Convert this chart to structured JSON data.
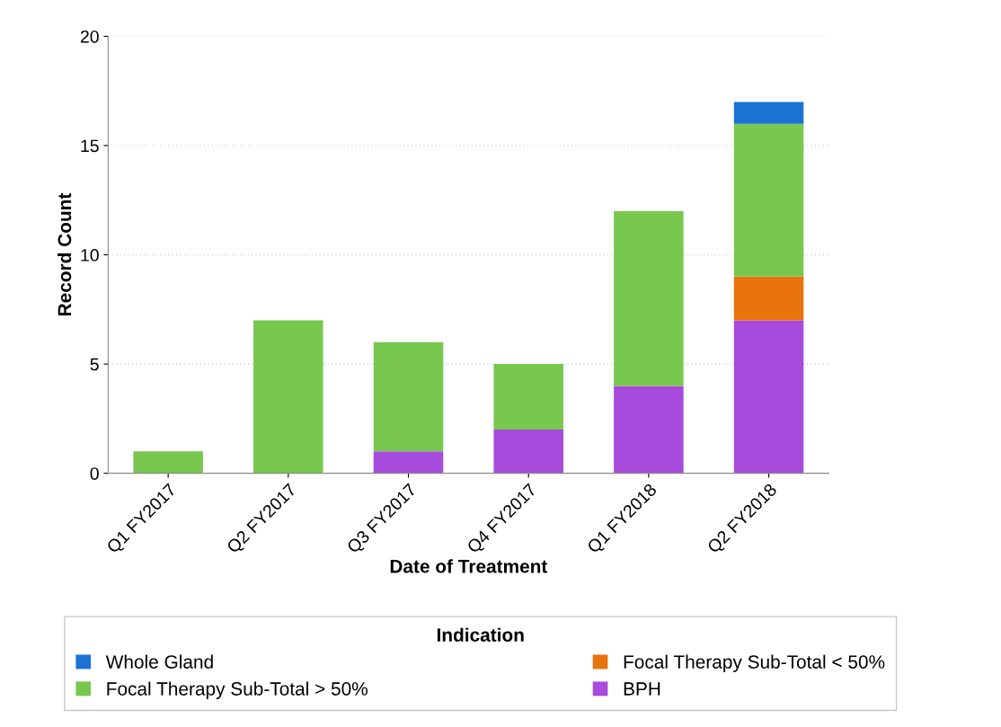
{
  "chart_data": {
    "type": "bar",
    "stacked": true,
    "xlabel": "Date of Treatment",
    "ylabel": "Record Count",
    "legend_title": "Indication",
    "categories": [
      "Q1 FY2017",
      "Q2 FY2017",
      "Q3 FY2017",
      "Q4 FY2017",
      "Q1 FY2018",
      "Q2 FY2018"
    ],
    "series": [
      {
        "name": "BPH",
        "color": "#a64bdb",
        "values": [
          0,
          0,
          1,
          2,
          4,
          7
        ]
      },
      {
        "name": "Focal Therapy Sub-Total < 50%",
        "color": "#e8730c",
        "values": [
          0,
          0,
          0,
          0,
          0,
          2
        ]
      },
      {
        "name": "Focal Therapy Sub-Total > 50%",
        "color": "#78c850",
        "values": [
          1,
          7,
          5,
          3,
          8,
          7
        ]
      },
      {
        "name": "Whole Gland",
        "color": "#1a73d4",
        "values": [
          0,
          0,
          0,
          0,
          0,
          1
        ]
      }
    ],
    "ylim": [
      0,
      20
    ],
    "yticks": [
      0,
      5,
      10,
      15,
      20
    ],
    "grid": "y",
    "legend": "bottom"
  }
}
